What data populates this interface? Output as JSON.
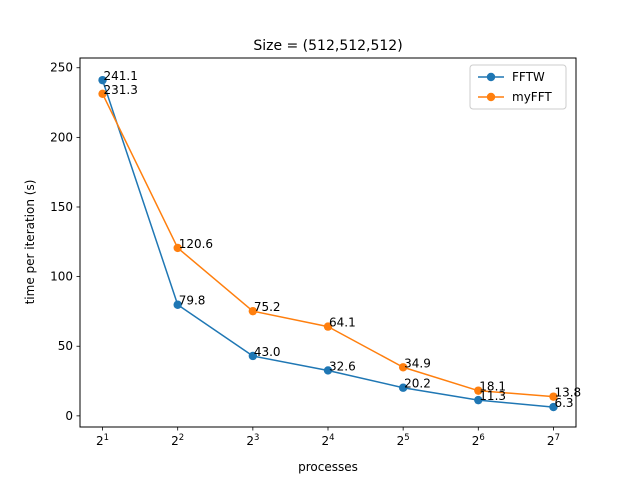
{
  "chart_data": {
    "type": "line",
    "title": "Size = (512,512,512)",
    "xlabel": "processes",
    "ylabel": "time per iteration (s)",
    "x": [
      1,
      2,
      3,
      4,
      5,
      6,
      7
    ],
    "x_tick_base": "2",
    "x_tick_exponents": [
      "1",
      "2",
      "3",
      "4",
      "5",
      "6",
      "7"
    ],
    "xscale": "log2",
    "y_ticks": [
      "0",
      "50",
      "100",
      "150",
      "200",
      "250"
    ],
    "ylim": [
      -8,
      257
    ],
    "grid": false,
    "legend_position": "top-right",
    "series": [
      {
        "name": "FFTW",
        "color": "#1f77b4",
        "values": [
          241.1,
          79.8,
          43.0,
          32.6,
          20.2,
          11.3,
          6.3
        ],
        "labels": [
          "241.1",
          "79.8",
          "43.0",
          "32.6",
          "20.2",
          "11.3",
          "6.3"
        ]
      },
      {
        "name": "myFFT",
        "color": "#ff7f0e",
        "values": [
          231.3,
          120.6,
          75.2,
          64.1,
          34.9,
          18.1,
          13.8
        ],
        "labels": [
          "231.3",
          "120.6",
          "75.2",
          "64.1",
          "34.9",
          "18.1",
          "13.8"
        ]
      }
    ]
  }
}
